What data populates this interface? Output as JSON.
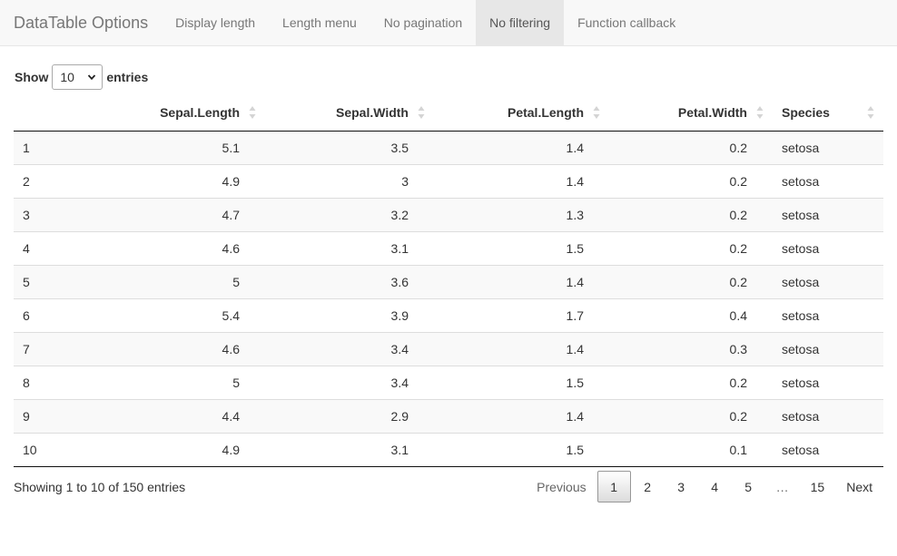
{
  "navbar": {
    "brand": "DataTable Options",
    "items": [
      {
        "label": "Display length"
      },
      {
        "label": "Length menu"
      },
      {
        "label": "No pagination"
      },
      {
        "label": "No filtering",
        "active": true
      },
      {
        "label": "Function callback"
      }
    ]
  },
  "length_menu": {
    "show_label": "Show",
    "selected": "10",
    "entries_label": "entries"
  },
  "table": {
    "columns": [
      "",
      "Sepal.Length",
      "Sepal.Width",
      "Petal.Length",
      "Petal.Width",
      "Species"
    ],
    "rows": [
      [
        "1",
        "5.1",
        "3.5",
        "1.4",
        "0.2",
        "setosa"
      ],
      [
        "2",
        "4.9",
        "3",
        "1.4",
        "0.2",
        "setosa"
      ],
      [
        "3",
        "4.7",
        "3.2",
        "1.3",
        "0.2",
        "setosa"
      ],
      [
        "4",
        "4.6",
        "3.1",
        "1.5",
        "0.2",
        "setosa"
      ],
      [
        "5",
        "5",
        "3.6",
        "1.4",
        "0.2",
        "setosa"
      ],
      [
        "6",
        "5.4",
        "3.9",
        "1.7",
        "0.4",
        "setosa"
      ],
      [
        "7",
        "4.6",
        "3.4",
        "1.4",
        "0.3",
        "setosa"
      ],
      [
        "8",
        "5",
        "3.4",
        "1.5",
        "0.2",
        "setosa"
      ],
      [
        "9",
        "4.4",
        "2.9",
        "1.4",
        "0.2",
        "setosa"
      ],
      [
        "10",
        "4.9",
        "3.1",
        "1.5",
        "0.1",
        "setosa"
      ]
    ]
  },
  "info": "Showing 1 to 10 of 150 entries",
  "pagination": {
    "previous": "Previous",
    "pages": [
      "1",
      "2",
      "3",
      "4",
      "5",
      "…",
      "15"
    ],
    "current": "1",
    "next": "Next"
  },
  "colors": {
    "navbar_bg": "#f8f8f8",
    "active_tab_bg": "#e7e7e7",
    "stripe": "#f9f9f9"
  }
}
